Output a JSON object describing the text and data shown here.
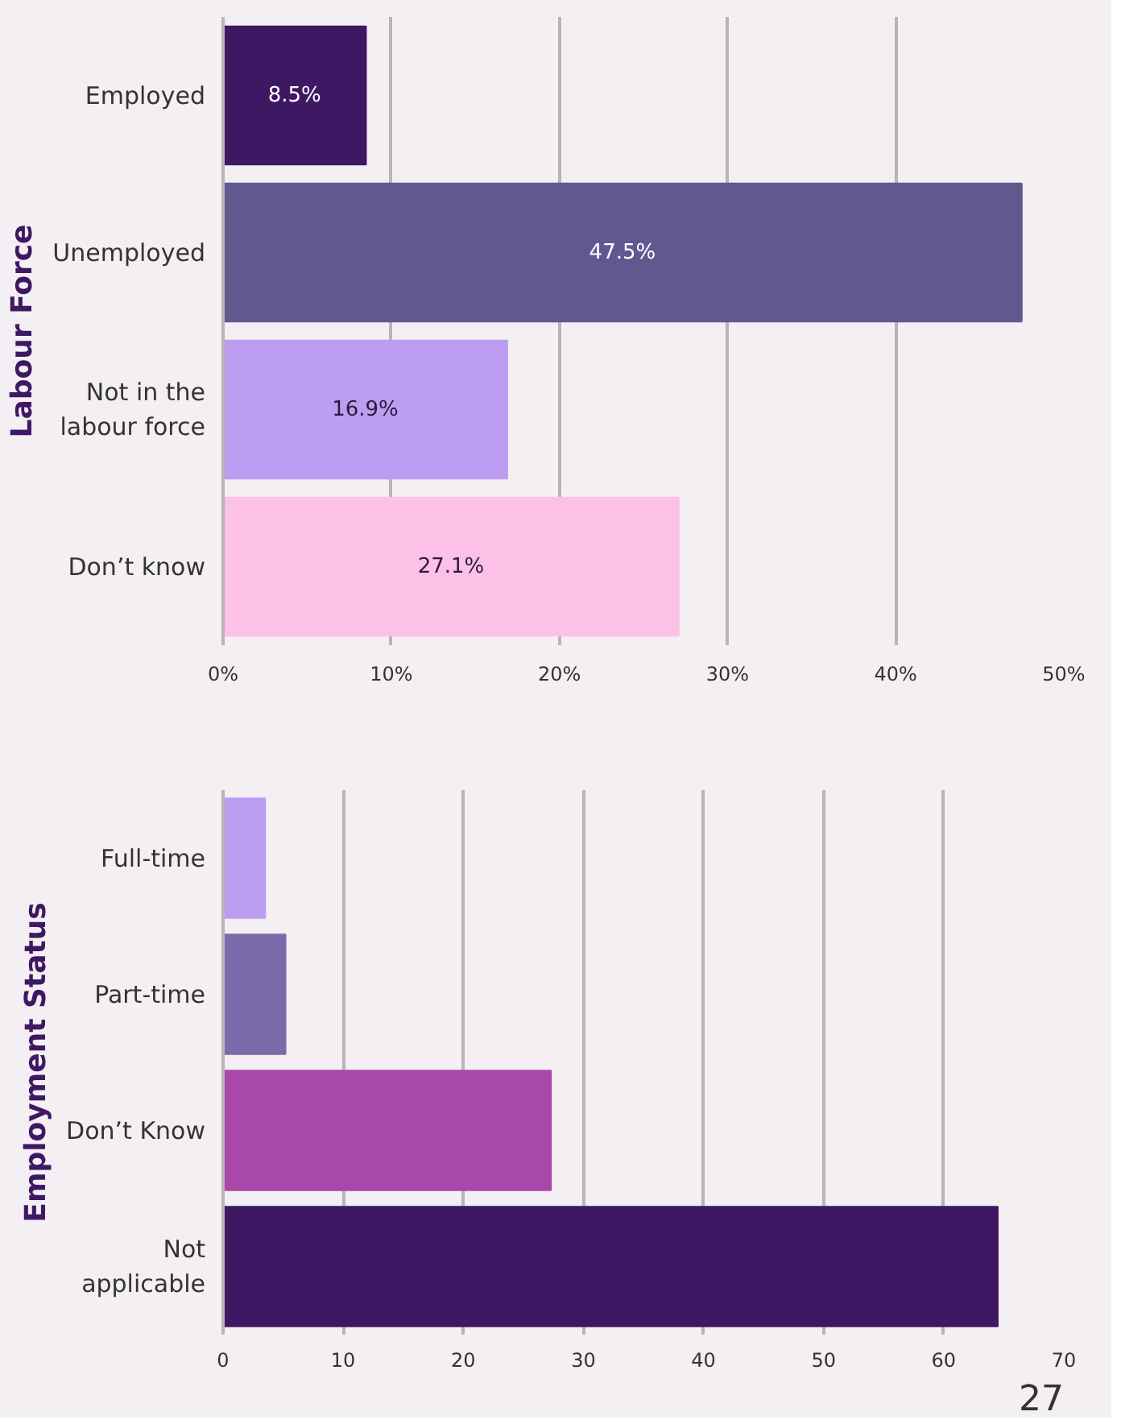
{
  "chart_data": [
    {
      "type": "bar",
      "orientation": "horizontal",
      "ylabel": "Labour Force",
      "categories": [
        "Employed",
        "Unemployed",
        "Not in the\nlabour force",
        "Don’t know"
      ],
      "values": [
        8.5,
        47.5,
        16.9,
        27.1
      ],
      "colors": [
        "#3f1863",
        "#625890",
        "#bd9df2",
        "#fdc0e6"
      ],
      "value_labels": [
        "8.5%",
        "47.5%",
        "16.9%",
        "27.1%"
      ],
      "xlim": [
        0,
        50
      ],
      "xticks": [
        {
          "value": 0,
          "label": "0%"
        },
        {
          "value": 10,
          "label": "10%"
        },
        {
          "value": 20,
          "label": "20%"
        },
        {
          "value": 30,
          "label": "30%"
        },
        {
          "value": 40,
          "label": "40%"
        },
        {
          "value": 50,
          "label": "50%"
        }
      ],
      "grid": "x"
    },
    {
      "type": "bar",
      "orientation": "horizontal",
      "ylabel": "Employment Status",
      "categories": [
        "Full-time",
        "Part-time",
        "Don’t Know",
        "Not\napplicable"
      ],
      "values": [
        3.5,
        5.2,
        27.3,
        64.5
      ],
      "colors": [
        "#bd9df2",
        "#7a6cab",
        "#a848a8",
        "#3f1863"
      ],
      "xlim": [
        0,
        70
      ],
      "xticks": [
        0,
        10,
        20,
        30,
        40,
        50,
        60,
        70
      ],
      "grid": "x",
      "annotations": [
        "27"
      ]
    }
  ]
}
